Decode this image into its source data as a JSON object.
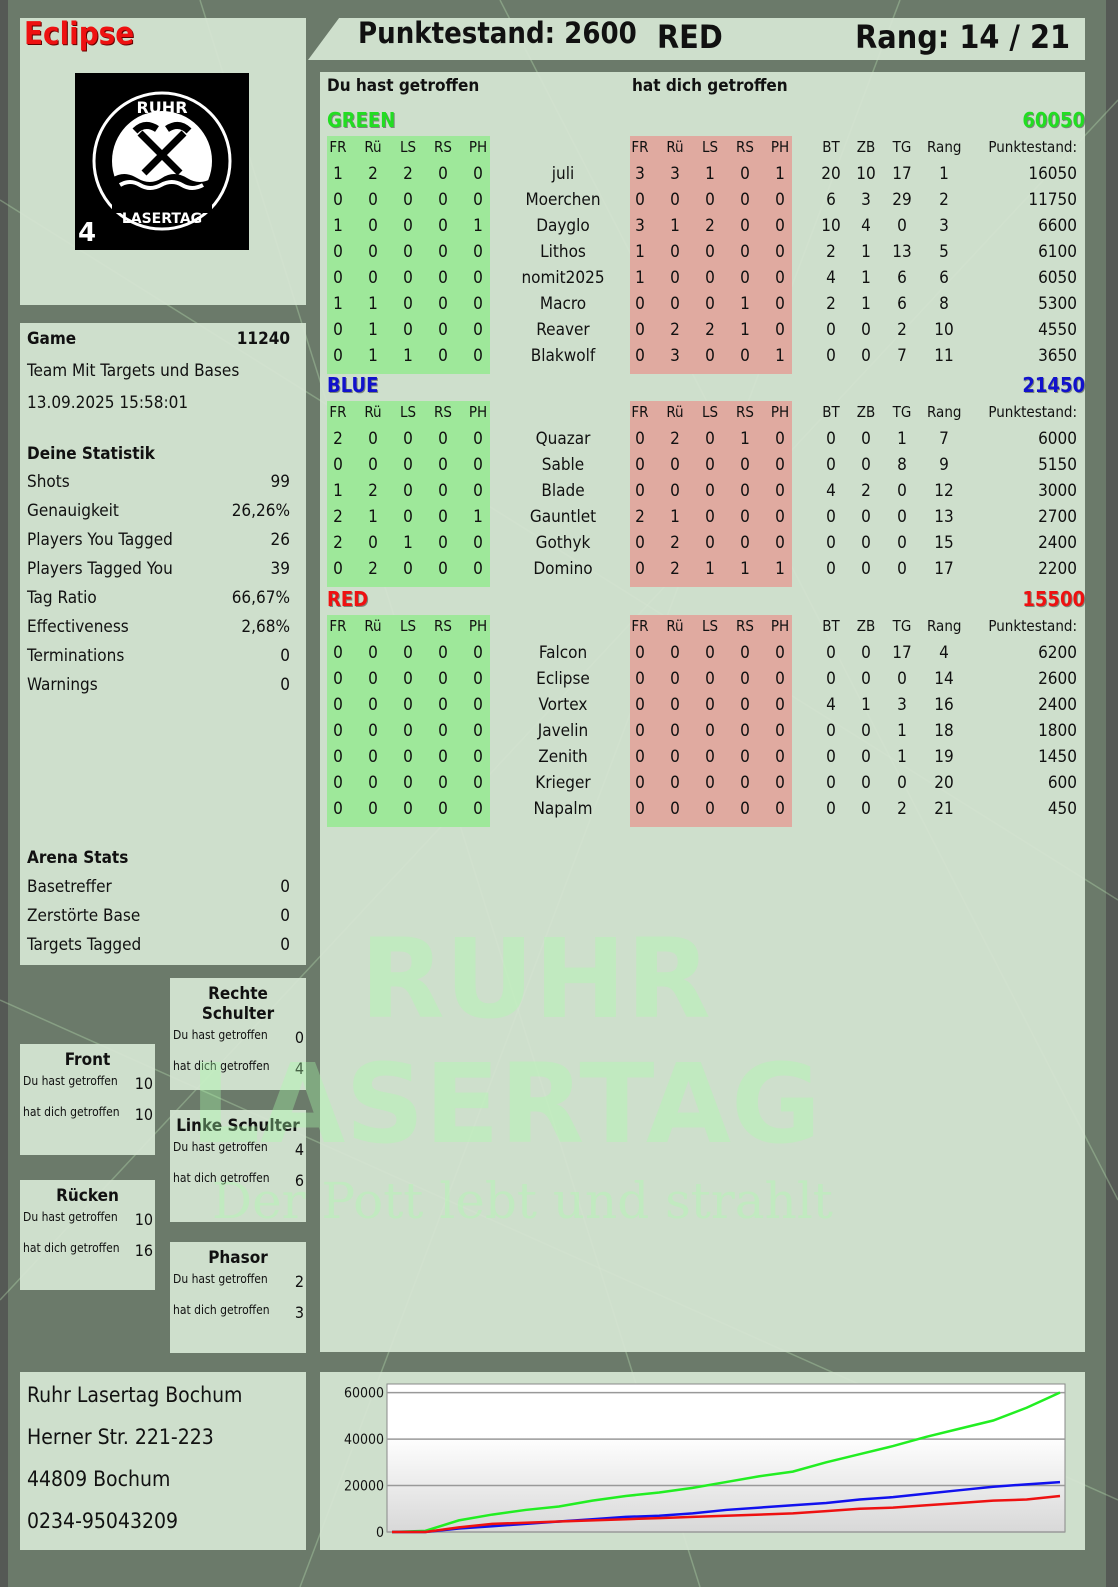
{
  "player": {
    "name": "Eclipse",
    "score_label": "Punktestand: 2600",
    "team": "RED",
    "rank_label": "Rang: 14 / 21"
  },
  "logo": {
    "text_top": "RUHR",
    "text_bottom": "LASERTAG",
    "badge": "4"
  },
  "game": {
    "label": "Game",
    "id": "11240",
    "mode": "Team Mit Targets und Bases",
    "datetime": "13.09.2025 15:58:01"
  },
  "stats": {
    "title": "Deine Statistik",
    "items": [
      {
        "label": "Shots",
        "value": "99"
      },
      {
        "label": "Genauigkeit",
        "value": "26,26%"
      },
      {
        "label": "Players You Tagged",
        "value": "26"
      },
      {
        "label": "Players Tagged You",
        "value": "39"
      },
      {
        "label": "Tag Ratio",
        "value": "66,67%"
      },
      {
        "label": "Effectiveness",
        "value": "2,68%"
      },
      {
        "label": "Terminations",
        "value": "0"
      },
      {
        "label": "Warnings",
        "value": "0"
      }
    ]
  },
  "arena": {
    "title": "Arena Stats",
    "items": [
      {
        "label": "Basetreffer",
        "value": "0"
      },
      {
        "label": "Zerstörte Base",
        "value": "0"
      },
      {
        "label": "Targets Tagged",
        "value": "0"
      }
    ]
  },
  "zones": [
    {
      "id": "front",
      "title": "Front",
      "hit": "10",
      "got": "10"
    },
    {
      "id": "ruecken",
      "title": "Rücken",
      "hit": "10",
      "got": "16"
    },
    {
      "id": "rechte-schulter",
      "title": "Rechte Schulter",
      "hit": "0",
      "got": "4"
    },
    {
      "id": "linke-schulter",
      "title": "Linke Schulter",
      "hit": "4",
      "got": "6"
    },
    {
      "id": "phasor",
      "title": "Phasor",
      "hit": "2",
      "got": "3"
    }
  ],
  "zone_labels": {
    "hit": "Du hast getroffen",
    "got": "hat dich getroffen"
  },
  "address": [
    "Ruhr Lasertag Bochum",
    "Herner Str. 221-223",
    "44809 Bochum",
    "0234-95043209"
  ],
  "main": {
    "hit_label": "Du hast getroffen",
    "got_label": "hat dich getroffen",
    "columns": {
      "hit": [
        "FR",
        "Rü",
        "LS",
        "RS",
        "PH"
      ],
      "got": [
        "FR",
        "Rü",
        "LS",
        "RS",
        "PH"
      ],
      "stats": [
        "BT",
        "ZB",
        "TG",
        "Rang"
      ],
      "score": "Punktestand:"
    },
    "teams": [
      {
        "name": "GREEN",
        "total": "60050",
        "color": "#22dd22",
        "players": [
          {
            "name": "juli",
            "hit": [
              "1",
              "2",
              "2",
              "0",
              "0"
            ],
            "got": [
              "3",
              "3",
              "1",
              "0",
              "1"
            ],
            "stats": [
              "20",
              "10",
              "17",
              "1"
            ],
            "score": "16050"
          },
          {
            "name": "Moerchen",
            "hit": [
              "0",
              "0",
              "0",
              "0",
              "0"
            ],
            "got": [
              "0",
              "0",
              "0",
              "0",
              "0"
            ],
            "stats": [
              "6",
              "3",
              "29",
              "2"
            ],
            "score": "11750"
          },
          {
            "name": "Dayglo",
            "hit": [
              "1",
              "0",
              "0",
              "0",
              "1"
            ],
            "got": [
              "3",
              "1",
              "2",
              "0",
              "0"
            ],
            "stats": [
              "10",
              "4",
              "0",
              "3"
            ],
            "score": "6600"
          },
          {
            "name": "Lithos",
            "hit": [
              "0",
              "0",
              "0",
              "0",
              "0"
            ],
            "got": [
              "1",
              "0",
              "0",
              "0",
              "0"
            ],
            "stats": [
              "2",
              "1",
              "13",
              "5"
            ],
            "score": "6100"
          },
          {
            "name": "nomit2025",
            "hit": [
              "0",
              "0",
              "0",
              "0",
              "0"
            ],
            "got": [
              "1",
              "0",
              "0",
              "0",
              "0"
            ],
            "stats": [
              "4",
              "1",
              "6",
              "6"
            ],
            "score": "6050"
          },
          {
            "name": "Macro",
            "hit": [
              "1",
              "1",
              "0",
              "0",
              "0"
            ],
            "got": [
              "0",
              "0",
              "0",
              "1",
              "0"
            ],
            "stats": [
              "2",
              "1",
              "6",
              "8"
            ],
            "score": "5300"
          },
          {
            "name": "Reaver",
            "hit": [
              "0",
              "1",
              "0",
              "0",
              "0"
            ],
            "got": [
              "0",
              "2",
              "2",
              "1",
              "0"
            ],
            "stats": [
              "0",
              "0",
              "2",
              "10"
            ],
            "score": "4550"
          },
          {
            "name": "Blakwolf",
            "hit": [
              "0",
              "1",
              "1",
              "0",
              "0"
            ],
            "got": [
              "0",
              "3",
              "0",
              "0",
              "1"
            ],
            "stats": [
              "0",
              "0",
              "7",
              "11"
            ],
            "score": "3650"
          }
        ]
      },
      {
        "name": "BLUE",
        "total": "21450",
        "color": "#1111cc",
        "players": [
          {
            "name": "Quazar",
            "hit": [
              "2",
              "0",
              "0",
              "0",
              "0"
            ],
            "got": [
              "0",
              "2",
              "0",
              "1",
              "0"
            ],
            "stats": [
              "0",
              "0",
              "1",
              "7"
            ],
            "score": "6000"
          },
          {
            "name": "Sable",
            "hit": [
              "0",
              "0",
              "0",
              "0",
              "0"
            ],
            "got": [
              "0",
              "0",
              "0",
              "0",
              "0"
            ],
            "stats": [
              "0",
              "0",
              "8",
              "9"
            ],
            "score": "5150"
          },
          {
            "name": "Blade",
            "hit": [
              "1",
              "2",
              "0",
              "0",
              "0"
            ],
            "got": [
              "0",
              "0",
              "0",
              "0",
              "0"
            ],
            "stats": [
              "4",
              "2",
              "0",
              "12"
            ],
            "score": "3000"
          },
          {
            "name": "Gauntlet",
            "hit": [
              "2",
              "1",
              "0",
              "0",
              "1"
            ],
            "got": [
              "2",
              "1",
              "0",
              "0",
              "0"
            ],
            "stats": [
              "0",
              "0",
              "0",
              "13"
            ],
            "score": "2700"
          },
          {
            "name": "Gothyk",
            "hit": [
              "2",
              "0",
              "1",
              "0",
              "0"
            ],
            "got": [
              "0",
              "2",
              "0",
              "0",
              "0"
            ],
            "stats": [
              "0",
              "0",
              "0",
              "15"
            ],
            "score": "2400"
          },
          {
            "name": "Domino",
            "hit": [
              "0",
              "2",
              "0",
              "0",
              "0"
            ],
            "got": [
              "0",
              "2",
              "1",
              "1",
              "1"
            ],
            "stats": [
              "0",
              "0",
              "0",
              "17"
            ],
            "score": "2200"
          }
        ]
      },
      {
        "name": "RED",
        "total": "15500",
        "color": "#ee1111",
        "players": [
          {
            "name": "Falcon",
            "hit": [
              "0",
              "0",
              "0",
              "0",
              "0"
            ],
            "got": [
              "0",
              "0",
              "0",
              "0",
              "0"
            ],
            "stats": [
              "0",
              "0",
              "17",
              "4"
            ],
            "score": "6200"
          },
          {
            "name": "Eclipse",
            "hit": [
              "0",
              "0",
              "0",
              "0",
              "0"
            ],
            "got": [
              "0",
              "0",
              "0",
              "0",
              "0"
            ],
            "stats": [
              "0",
              "0",
              "0",
              "14"
            ],
            "score": "2600"
          },
          {
            "name": "Vortex",
            "hit": [
              "0",
              "0",
              "0",
              "0",
              "0"
            ],
            "got": [
              "0",
              "0",
              "0",
              "0",
              "0"
            ],
            "stats": [
              "4",
              "1",
              "3",
              "16"
            ],
            "score": "2400"
          },
          {
            "name": "Javelin",
            "hit": [
              "0",
              "0",
              "0",
              "0",
              "0"
            ],
            "got": [
              "0",
              "0",
              "0",
              "0",
              "0"
            ],
            "stats": [
              "0",
              "0",
              "1",
              "18"
            ],
            "score": "1800"
          },
          {
            "name": "Zenith",
            "hit": [
              "0",
              "0",
              "0",
              "0",
              "0"
            ],
            "got": [
              "0",
              "0",
              "0",
              "0",
              "0"
            ],
            "stats": [
              "0",
              "0",
              "1",
              "19"
            ],
            "score": "1450"
          },
          {
            "name": "Krieger",
            "hit": [
              "0",
              "0",
              "0",
              "0",
              "0"
            ],
            "got": [
              "0",
              "0",
              "0",
              "0",
              "0"
            ],
            "stats": [
              "0",
              "0",
              "0",
              "20"
            ],
            "score": "600"
          },
          {
            "name": "Napalm",
            "hit": [
              "0",
              "0",
              "0",
              "0",
              "0"
            ],
            "got": [
              "0",
              "0",
              "0",
              "0",
              "0"
            ],
            "stats": [
              "0",
              "0",
              "2",
              "21"
            ],
            "score": "450"
          }
        ]
      }
    ]
  },
  "watermark": {
    "line1": "RUHR",
    "line2": "LASERTAG",
    "slogan": "Der Pott lebt und strahlt"
  },
  "colors": {
    "hit_bg": "#9ee89a",
    "got_bg": "#e0aaa0",
    "panel": "#d6e6d4",
    "player_name": "#ee1111"
  },
  "chart_data": {
    "type": "line",
    "ylim": [
      0,
      62000
    ],
    "yticks": [
      "60000",
      "40000",
      "20000",
      "0"
    ],
    "grid": true,
    "legend": "none",
    "series": [
      {
        "color": "#22ee22",
        "values": [
          0,
          500,
          5000,
          7500,
          9500,
          11000,
          13500,
          15500,
          17000,
          19000,
          21500,
          24000,
          26000,
          30000,
          33500,
          37000,
          41000,
          44500,
          48000,
          53500,
          60050
        ]
      },
      {
        "color": "#1111ee",
        "values": [
          0,
          0,
          1500,
          2500,
          3500,
          4500,
          5500,
          6500,
          7000,
          8000,
          9500,
          10500,
          11500,
          12500,
          14000,
          15000,
          16500,
          18000,
          19500,
          20500,
          21450
        ]
      },
      {
        "color": "#ee1111",
        "values": [
          0,
          0,
          2000,
          3500,
          4000,
          4500,
          5000,
          5500,
          6000,
          6500,
          7000,
          7500,
          8000,
          9000,
          10000,
          10500,
          11500,
          12500,
          13500,
          14000,
          15500
        ]
      }
    ]
  }
}
